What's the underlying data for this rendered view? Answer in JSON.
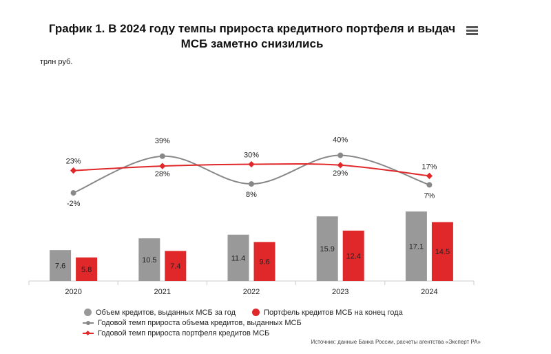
{
  "title": "График 1. В 2024 году темпы прироста кредитного портфеля и выдач МСБ заметно снизились",
  "menu_icon": "hamburger-menu-icon",
  "unit_label": "трлн руб.",
  "source": "Источник: данные Банка России, расчеты агентства «Эксперт РА»",
  "colors": {
    "gray": "#999999",
    "red": "#e0282a",
    "gray_line": "#888888",
    "axis": "#cccccc"
  },
  "chart_data": {
    "type": "bar",
    "categories": [
      "2020",
      "2021",
      "2022",
      "2023",
      "2024"
    ],
    "series": [
      {
        "name": "Объем кредитов, выданных МСБ за год",
        "type": "bar",
        "color": "#999999",
        "values": [
          7.6,
          10.5,
          11.4,
          15.9,
          17.1
        ],
        "labels": [
          "7.6",
          "10.5",
          "11.4",
          "15.9",
          "17.1"
        ]
      },
      {
        "name": "Портфель кредитов МСБ на конец года",
        "type": "bar",
        "color": "#e0282a",
        "values": [
          5.8,
          7.4,
          9.6,
          12.4,
          14.5
        ],
        "labels": [
          "5.8",
          "7.4",
          "9.6",
          "12.4",
          "14.5"
        ]
      },
      {
        "name": "Годовой темп прироста объема кредитов, выданных МСБ",
        "type": "line",
        "color": "#888888",
        "values": [
          -2,
          39,
          8,
          40,
          7
        ],
        "labels": [
          "-2%",
          "39%",
          "8%",
          "40%",
          "7%"
        ]
      },
      {
        "name": "Годовой темп прироста портфеля кредитов МСБ",
        "type": "line",
        "color": "#e0282a",
        "values": [
          23,
          28,
          30,
          29,
          17
        ],
        "labels": [
          "23%",
          "28%",
          "30%",
          "29%",
          "17%"
        ]
      }
    ]
  }
}
